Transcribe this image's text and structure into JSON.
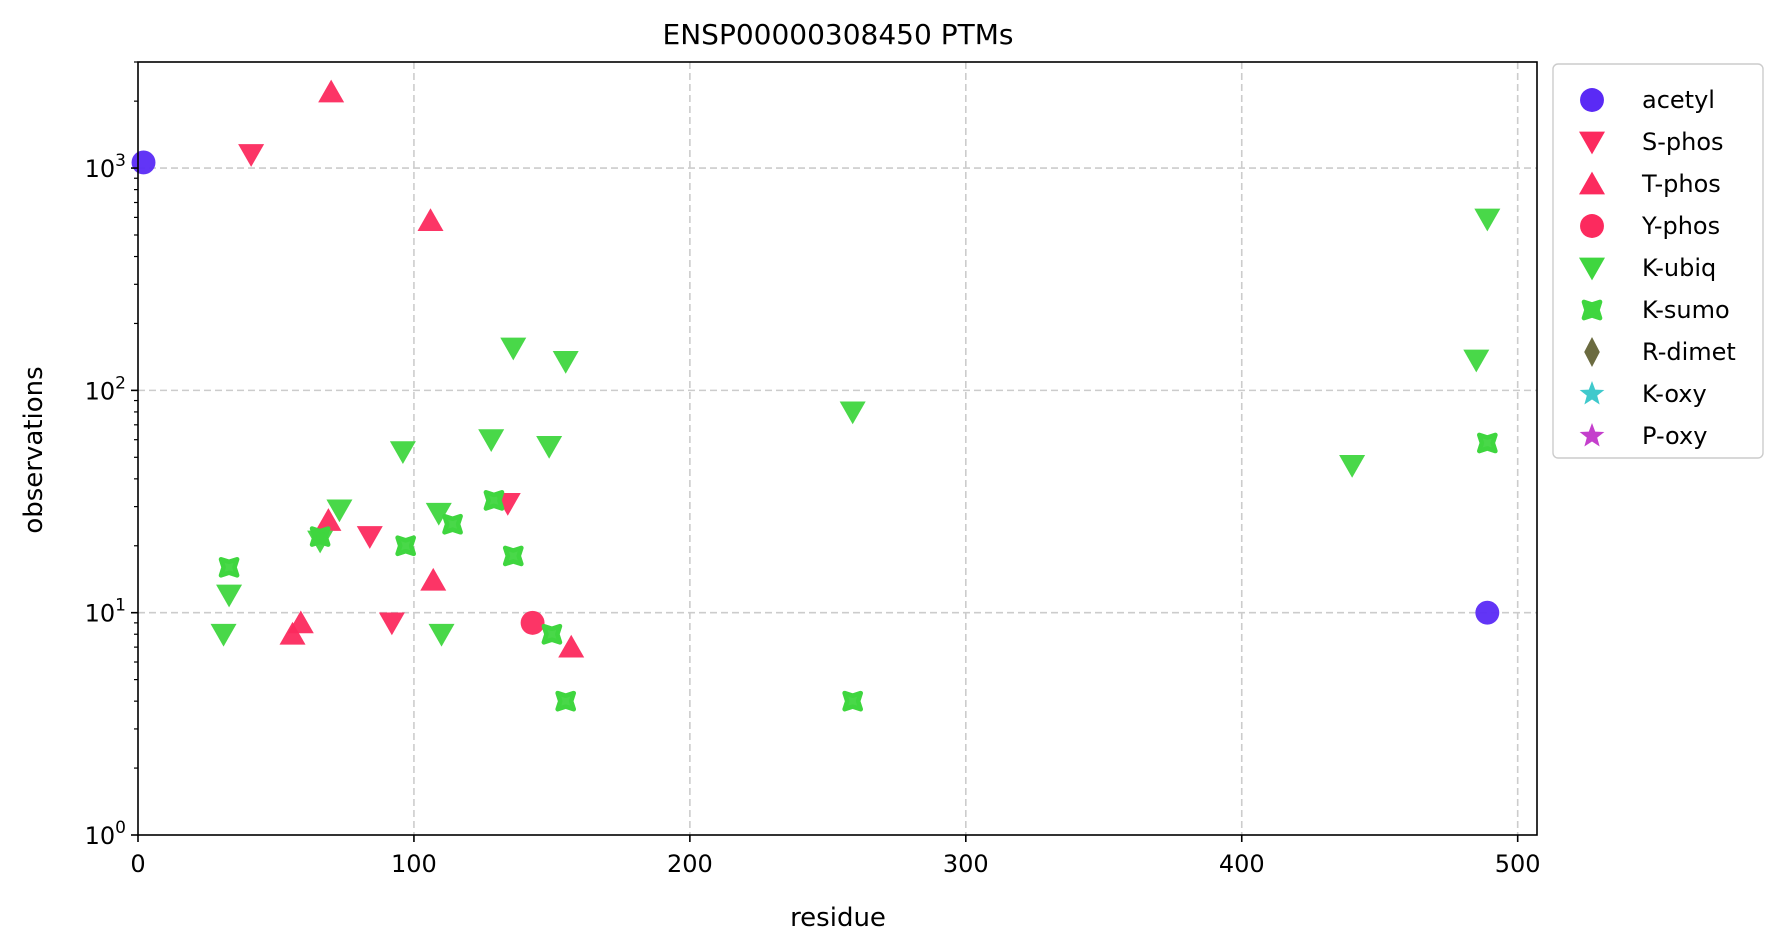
{
  "chart_data": {
    "type": "scatter",
    "title": "ENSP00000308450 PTMs",
    "xlabel": "residue",
    "ylabel": "observations",
    "xlim": [
      0,
      507
    ],
    "ylim": [
      1,
      3000
    ],
    "yscale": "log",
    "x_ticks": [
      0,
      100,
      200,
      300,
      400,
      500
    ],
    "y_ticks": [
      {
        "value": 1,
        "base": "10",
        "exp": "0"
      },
      {
        "value": 10,
        "base": "10",
        "exp": "1"
      },
      {
        "value": 100,
        "base": "10",
        "exp": "2"
      },
      {
        "value": 1000,
        "base": "10",
        "exp": "3"
      }
    ],
    "grid": true,
    "legend_position": "outside-right",
    "series": [
      {
        "name": "acetyl",
        "marker": "circle",
        "color": "#5a2af5",
        "points": [
          [
            2,
            1060
          ],
          [
            489,
            10
          ]
        ]
      },
      {
        "name": "S-phos",
        "marker": "triangle-down",
        "color": "#fc2a5e",
        "points": [
          [
            41,
            1150
          ],
          [
            84,
            22
          ],
          [
            92,
            9
          ],
          [
            134,
            31
          ]
        ]
      },
      {
        "name": "T-phos",
        "marker": "triangle-up",
        "color": "#fc2a5e",
        "points": [
          [
            70,
            2200
          ],
          [
            106,
            580
          ],
          [
            56,
            8
          ],
          [
            59,
            9
          ],
          [
            69,
            26
          ],
          [
            107,
            14
          ],
          [
            157,
            7
          ]
        ]
      },
      {
        "name": "Y-phos",
        "marker": "circle",
        "color": "#fc2a5e",
        "points": [
          [
            143,
            9
          ]
        ]
      },
      {
        "name": "K-ubiq",
        "marker": "triangle-down",
        "color": "#3fd63f",
        "points": [
          [
            31,
            8
          ],
          [
            33,
            12
          ],
          [
            66,
            21
          ],
          [
            73,
            29
          ],
          [
            96,
            53
          ],
          [
            109,
            28
          ],
          [
            110,
            8
          ],
          [
            128,
            60
          ],
          [
            136,
            155
          ],
          [
            149,
            56
          ],
          [
            155,
            135
          ],
          [
            259,
            80
          ],
          [
            440,
            46
          ],
          [
            485,
            137
          ],
          [
            489,
            590
          ]
        ]
      },
      {
        "name": "K-sumo",
        "marker": "x",
        "color": "#3fd63f",
        "points": [
          [
            33,
            16
          ],
          [
            66,
            22
          ],
          [
            97,
            20
          ],
          [
            114,
            25
          ],
          [
            129,
            32
          ],
          [
            136,
            18
          ],
          [
            150,
            8
          ],
          [
            155,
            4
          ],
          [
            259,
            4
          ],
          [
            489,
            58
          ]
        ]
      },
      {
        "name": "R-dimet",
        "marker": "diamond",
        "color": "#6b6b40",
        "points": []
      },
      {
        "name": "K-oxy",
        "marker": "star",
        "color": "#3fc9cc",
        "points": []
      },
      {
        "name": "P-oxy",
        "marker": "star",
        "color": "#c43fcc",
        "points": []
      }
    ]
  }
}
